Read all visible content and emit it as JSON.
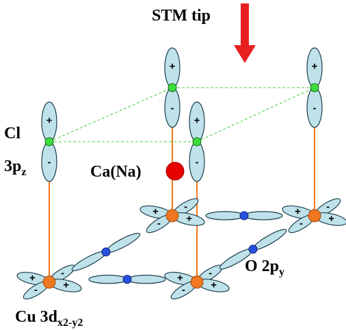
{
  "title": "STM tip",
  "labels": {
    "cl": "Cl",
    "cl_orbital": "3p",
    "cl_orbital_sub": "z",
    "ca": "Ca(Na)",
    "o_orbital": "O 2p",
    "o_orbital_sub": "y",
    "cu_orbital": "Cu 3d",
    "cu_orbital_sub": "x2-y2"
  },
  "signs": {
    "plus": "+",
    "minus": "-"
  }
}
